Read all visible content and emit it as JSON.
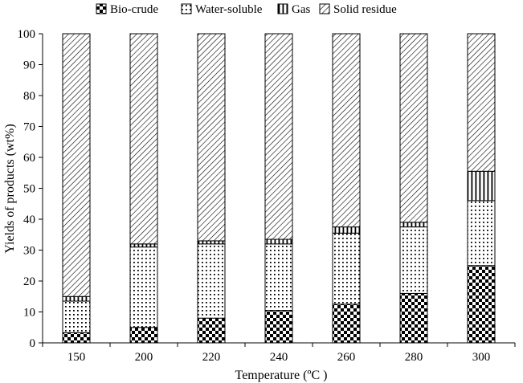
{
  "chart_data": {
    "type": "bar",
    "stacked": true,
    "categories": [
      "150",
      "200",
      "220",
      "240",
      "260",
      "280",
      "300"
    ],
    "series": [
      {
        "name": "Bio-crude",
        "values": [
          3.3,
          5.0,
          8.0,
          10.5,
          12.5,
          16.0,
          25.0
        ],
        "pattern": "checker"
      },
      {
        "name": "Water-soluble",
        "values": [
          10.2,
          26.0,
          24.0,
          21.5,
          23.0,
          21.5,
          21.0
        ],
        "pattern": "dots"
      },
      {
        "name": "Gas",
        "values": [
          1.5,
          1.0,
          1.0,
          1.5,
          2.0,
          1.5,
          9.5
        ],
        "pattern": "vertical"
      },
      {
        "name": "Solid residue",
        "values": [
          85.0,
          68.0,
          67.0,
          66.5,
          62.5,
          61.0,
          44.5
        ],
        "pattern": "diagonal"
      }
    ],
    "xlabel": "Temperature (ºC )",
    "ylabel": "Yields of products (wt%)",
    "ylim": [
      0,
      100
    ],
    "yticks": [
      0,
      10,
      20,
      30,
      40,
      50,
      60,
      70,
      80,
      90,
      100
    ],
    "legend_position": "top",
    "grid": false
  }
}
